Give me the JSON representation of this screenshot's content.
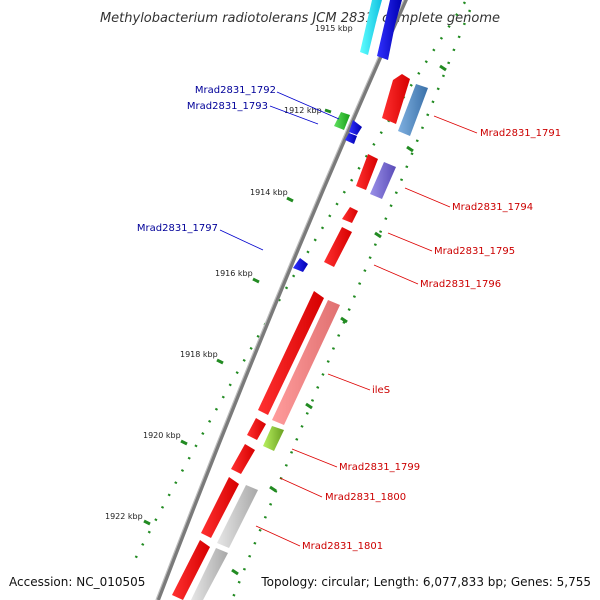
{
  "title": "Methylobacterium radiotolerans JCM 2831, complete genome",
  "footer": {
    "accession": "Accession: NC_010505",
    "topology": "Topology: circular; Length: 6,077,833 bp; Genes: 5,755"
  },
  "colors": {
    "forward_strand": "#ee0000",
    "reverse_strand": "#0000ee",
    "forward_label": "#cc0000",
    "reverse_label": "#000099",
    "tick_marks": "#228b22",
    "backbone": "#777777"
  },
  "kbp_ticks": [
    "1915 kbp",
    "1912 kbp",
    "1914 kbp",
    "1916 kbp",
    "1918 kbp",
    "1920 kbp",
    "1922 kbp"
  ],
  "reverse_labels": [
    "Mrad2831_1792",
    "Mrad2831_1793",
    "Mrad2831_1797"
  ],
  "forward_labels": [
    "Mrad2831_1791",
    "Mrad2831_1794",
    "Mrad2831_1795",
    "Mrad2831_1796",
    "ileS",
    "Mrad2831_1799",
    "Mrad2831_1800",
    "Mrad2831_1801"
  ]
}
